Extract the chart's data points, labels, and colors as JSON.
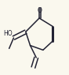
{
  "background_color": "#faf8ee",
  "line_color": "#222233",
  "bond_lw": 1.1,
  "bold_lw": 2.2,
  "figsize": [
    0.88,
    0.95
  ],
  "dpi": 100
}
